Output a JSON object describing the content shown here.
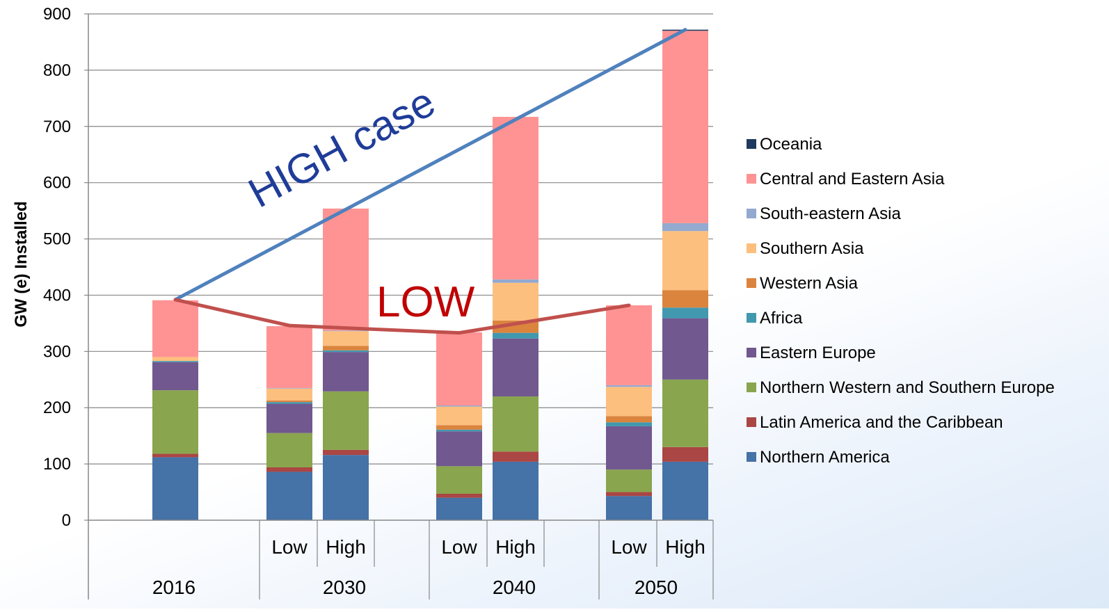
{
  "chart_data": {
    "type": "bar",
    "stacked": true,
    "ylabel": "GW (e) Installed",
    "xlabel": "",
    "ylim": [
      0,
      900
    ],
    "yticks": [
      0,
      100,
      200,
      300,
      400,
      500,
      600,
      700,
      800,
      900
    ],
    "grid": true,
    "legend_position": "right",
    "categories": [
      "2016",
      "2030 Low",
      "2030 High",
      "2040 Low",
      "2040 High",
      "2050 Low",
      "2050 High"
    ],
    "bar_sublabels": [
      "",
      "Low",
      "High",
      "Low",
      "High",
      "Low",
      "High"
    ],
    "year_groups": [
      {
        "label": "2016",
        "bars": [
          0
        ]
      },
      {
        "label": "2030",
        "bars": [
          1,
          2
        ]
      },
      {
        "label": "2040",
        "bars": [
          3,
          4
        ]
      },
      {
        "label": "2050",
        "bars": [
          5,
          6
        ]
      }
    ],
    "series": [
      {
        "name": "Northern America",
        "color": "#4572a7",
        "values": [
          112,
          86,
          116,
          40,
          104,
          43,
          104
        ]
      },
      {
        "name": "Latin America and the Caribbean",
        "color": "#aa4643",
        "values": [
          6,
          8,
          9,
          7,
          18,
          7,
          26
        ]
      },
      {
        "name": "Northern Western and Southern Europe",
        "color": "#89a54e",
        "values": [
          113,
          61,
          104,
          49,
          98,
          40,
          120
        ]
      },
      {
        "name": "Eastern Europe",
        "color": "#71588f",
        "values": [
          50,
          52,
          70,
          62,
          103,
          77,
          109
        ]
      },
      {
        "name": "Africa",
        "color": "#4198af",
        "values": [
          2,
          3,
          3,
          3,
          10,
          7,
          19
        ]
      },
      {
        "name": "Western Asia",
        "color": "#db843d",
        "values": [
          0,
          3,
          8,
          8,
          22,
          11,
          31
        ]
      },
      {
        "name": "Southern Asia",
        "color": "#fdbf7e",
        "values": [
          7,
          21,
          26,
          33,
          67,
          52,
          105
        ]
      },
      {
        "name": "South-eastern Asia",
        "color": "#93a9cf",
        "values": [
          0,
          1,
          1,
          2,
          6,
          3,
          14
        ]
      },
      {
        "name": "Central and Eastern Asia",
        "color": "#ff9393",
        "values": [
          101,
          110,
          217,
          130,
          289,
          142,
          342
        ]
      },
      {
        "name": "Oceania",
        "color": "#1f3a5f",
        "values": [
          0,
          0,
          0,
          0,
          0,
          0,
          2
        ]
      }
    ],
    "annotations": [
      {
        "text": "HIGH case",
        "color": "#1f3c99"
      },
      {
        "text": "LOW",
        "color": "#c00000"
      }
    ],
    "trend_lines": [
      {
        "name": "HIGH case",
        "color": "#4f81bd",
        "points": [
          {
            "bar": 0,
            "y": 392
          },
          {
            "bar": 6,
            "y": 872
          }
        ]
      },
      {
        "name": "LOW",
        "color": "#c0504d",
        "points": [
          {
            "bar": 0,
            "y": 392
          },
          {
            "bar": 1,
            "y": 346
          },
          {
            "bar": 3,
            "y": 333
          },
          {
            "bar": 5,
            "y": 382
          }
        ]
      }
    ]
  }
}
